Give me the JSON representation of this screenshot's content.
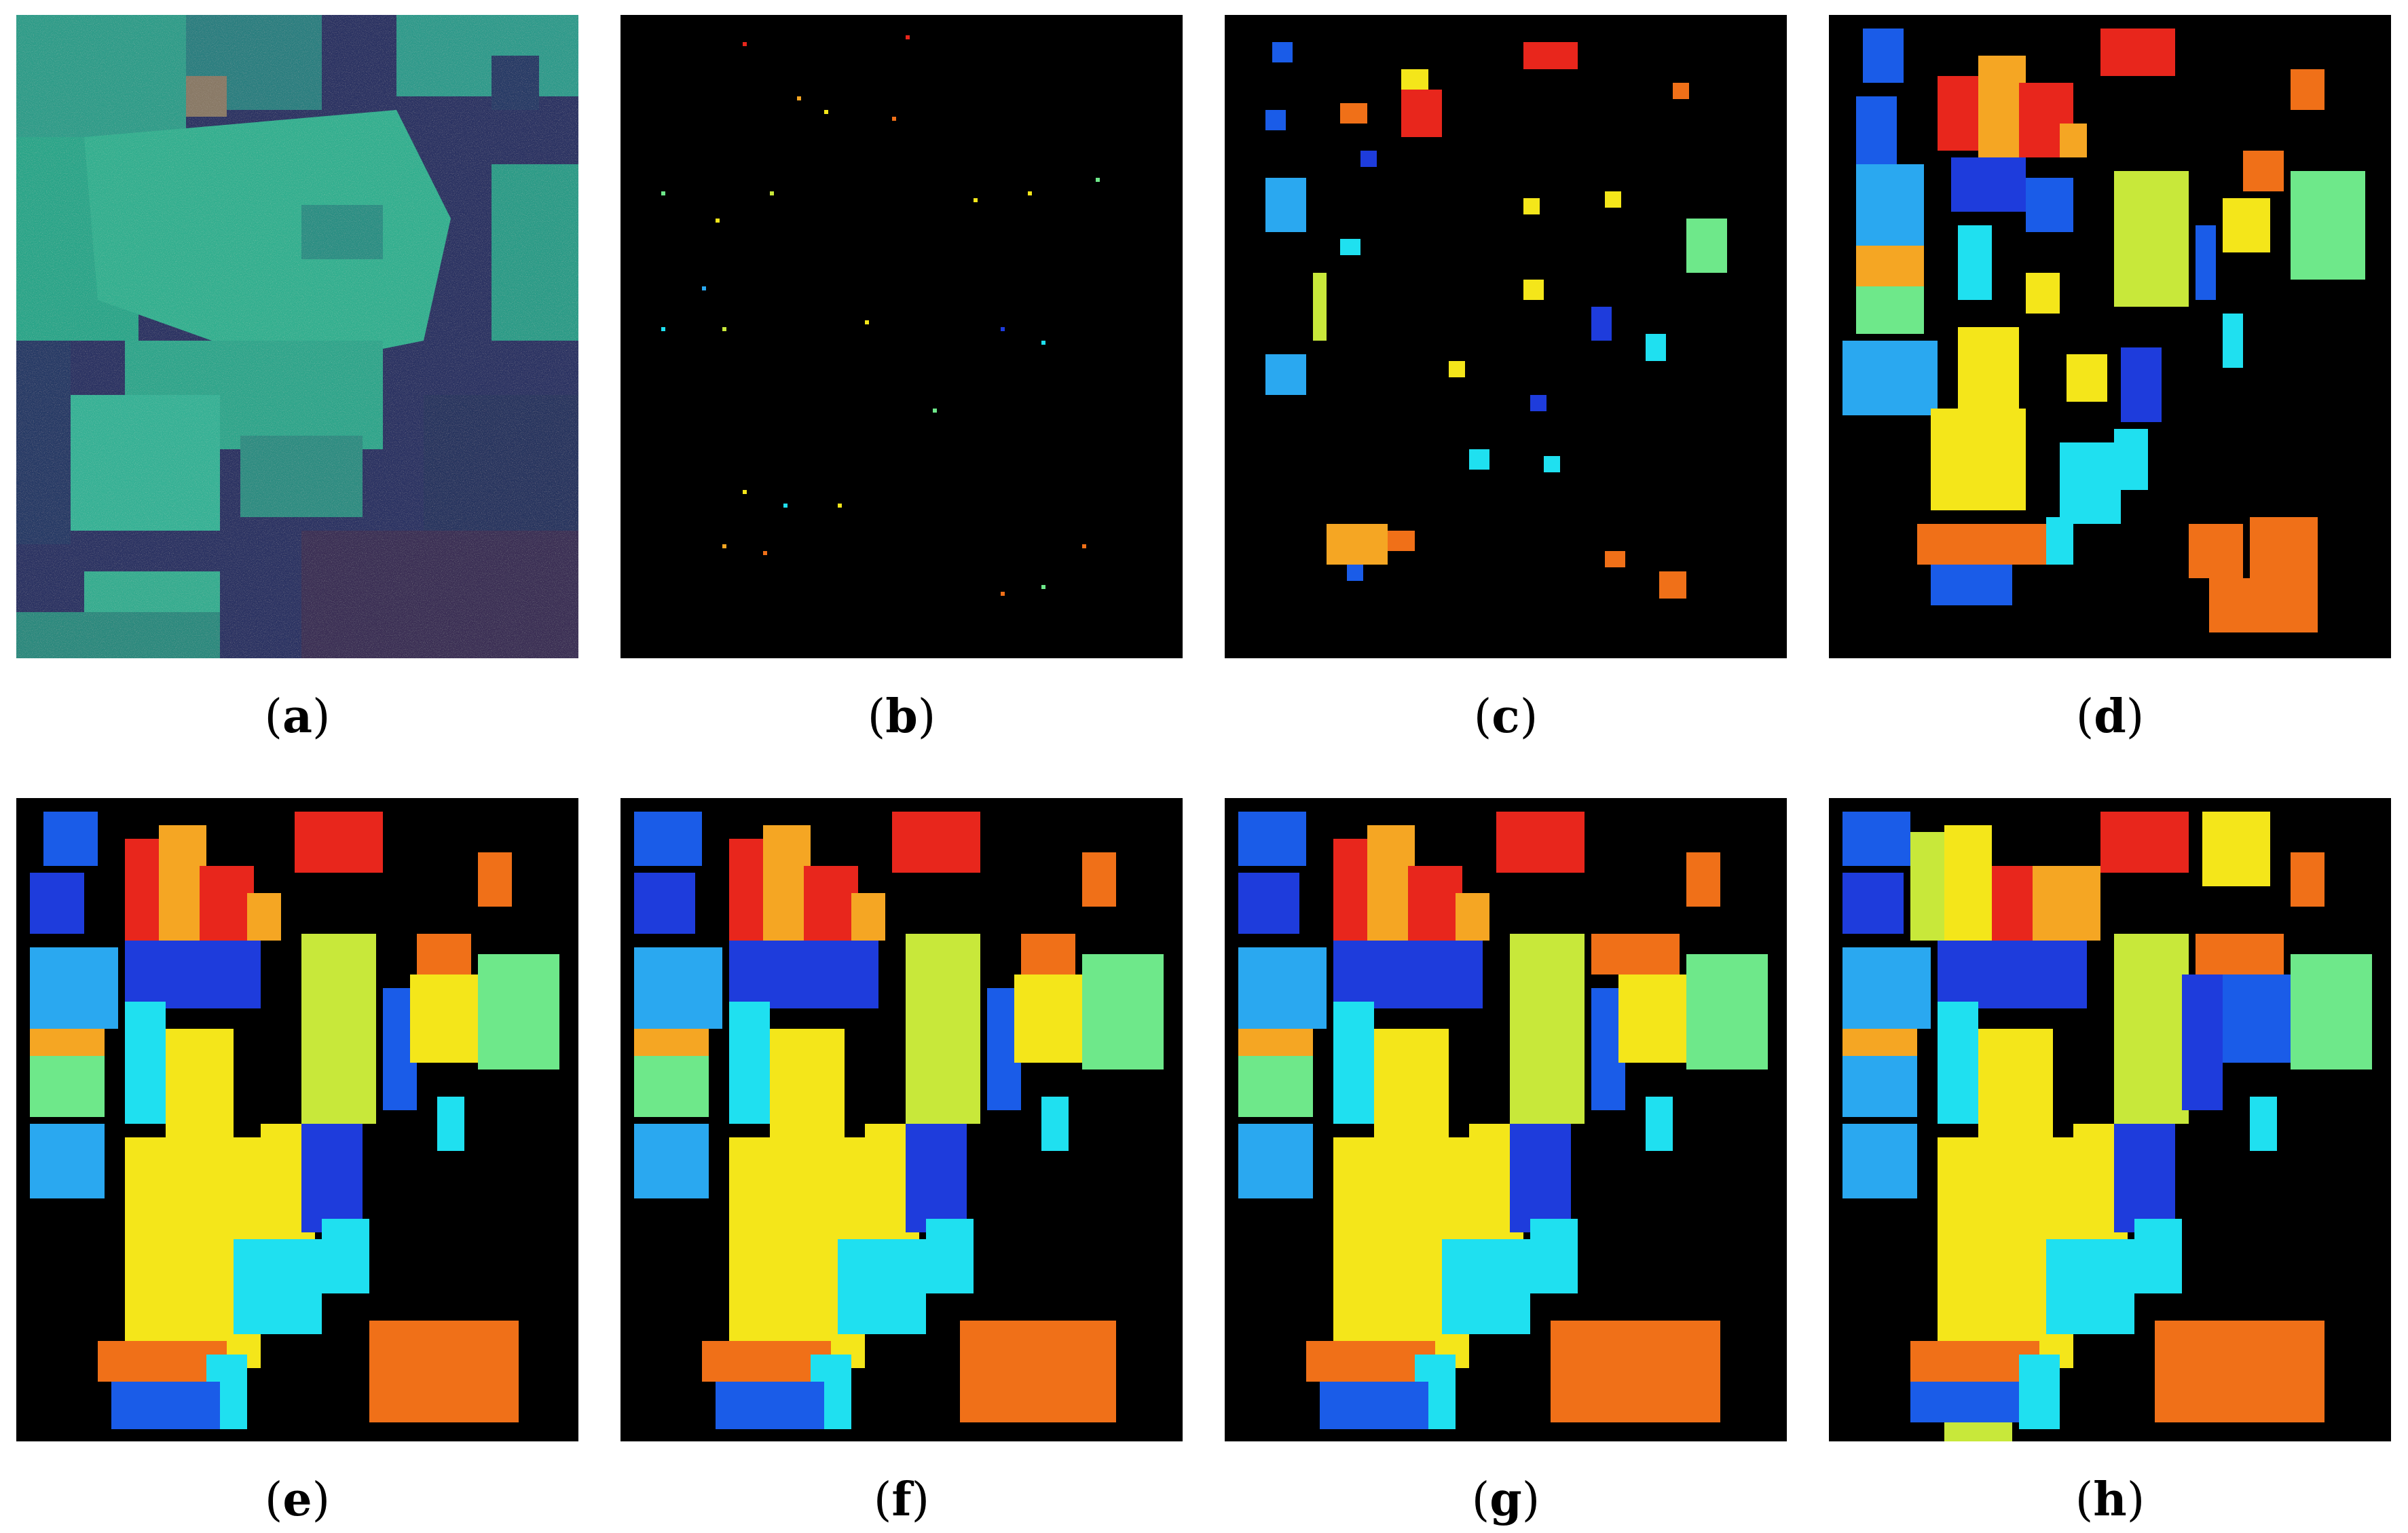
{
  "figure": {
    "panels": [
      {
        "id": "a",
        "label": "a",
        "kind": "false-color-image"
      },
      {
        "id": "b",
        "label": "b",
        "kind": "training-samples-map"
      },
      {
        "id": "c",
        "label": "c",
        "kind": "sparse-classification-map"
      },
      {
        "id": "d",
        "label": "d",
        "kind": "ground-truth-map"
      },
      {
        "id": "e",
        "label": "e",
        "kind": "classification-map"
      },
      {
        "id": "f",
        "label": "f",
        "kind": "classification-map"
      },
      {
        "id": "g",
        "label": "g",
        "kind": "classification-map"
      },
      {
        "id": "h",
        "label": "h",
        "kind": "classification-map"
      }
    ],
    "colors": {
      "background": "#000000",
      "red": "#e8261c",
      "orange": "#f07018",
      "light-orange": "#f5a623",
      "yellow": "#f4e61a",
      "yellow-green": "#c8e83a",
      "green": "#6ee88a",
      "cyan": "#1fe0f0",
      "light-blue": "#2aa8f0",
      "blue": "#1a5ce8",
      "dark-blue": "#1e3cdc",
      "field-teal": "#2fa890",
      "field-dark": "#2a2f58"
    }
  }
}
